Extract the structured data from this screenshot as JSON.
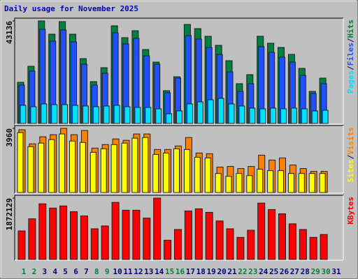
{
  "chart_data": [
    {
      "type": "bar",
      "title": "Daily usage for November 2025",
      "title_color": "#0000c0",
      "separator": "/",
      "ylim": [
        0,
        43136
      ],
      "yticks": [
        43136
      ],
      "series": [
        {
          "name": "Hits",
          "color": "#008040",
          "values": [
            17313,
            24063,
            43136,
            37561,
            42843,
            37561,
            27290,
            17606,
            23475,
            41082,
            36094,
            39028,
            31105,
            25823,
            13792,
            19661,
            41669,
            39908,
            36681,
            32866,
            26410,
            16726,
            20541,
            36681,
            33746,
            31985,
            29051,
            23182,
            13498,
            19074,
            null
          ]
        },
        {
          "name": "Files",
          "color": "#2050ff",
          "values": [
            16139,
            22008,
            39614,
            34626,
            39321,
            34333,
            24943,
            16139,
            21128,
            38147,
            33453,
            35800,
            28464,
            24943,
            12911,
            19074,
            36974,
            35507,
            31985,
            29051,
            21715,
            13498,
            16726,
            32279,
            29931,
            27877,
            25823,
            20248,
            12618,
            16726,
            null
          ]
        },
        {
          "name": "Pages",
          "color": "#00e0ff",
          "values": [
            7630,
            7042,
            8216,
            7923,
            7923,
            7630,
            7336,
            7042,
            7336,
            7630,
            7042,
            6749,
            6749,
            6162,
            4108,
            5282,
            8216,
            9096,
            9976,
            10563,
            8216,
            7336,
            6455,
            6162,
            6455,
            6162,
            6455,
            6162,
            5282,
            5575,
            null
          ]
        }
      ]
    },
    {
      "type": "bar",
      "separator": "/",
      "ylim": [
        0,
        3960
      ],
      "yticks": [
        3960
      ],
      "series": [
        {
          "name": "Visits",
          "color": "#ff8000",
          "values": [
            3873,
            3003,
            3438,
            3568,
            3960,
            3568,
            3829,
            2741,
            2959,
            3307,
            3220,
            3612,
            3612,
            2654,
            2654,
            2872,
            3394,
            2437,
            2393,
            1567,
            1610,
            1480,
            1610,
            2306,
            2002,
            2132,
            1697,
            1480,
            1305,
            1305,
            null
          ]
        },
        {
          "name": "Sites",
          "color": "#ffff00",
          "values": [
            3699,
            2829,
            3046,
            3264,
            3612,
            3177,
            3090,
            2480,
            2698,
            2959,
            3046,
            3351,
            3394,
            2350,
            2437,
            2698,
            2654,
            2176,
            2132,
            1175,
            1001,
            1175,
            1044,
            1436,
            1349,
            1349,
            1175,
            1175,
            1175,
            1175,
            null
          ]
        }
      ]
    },
    {
      "type": "bar",
      "ylim": [
        0,
        1872129
      ],
      "yticks": [
        1872129
      ],
      "categories": [
        "1",
        "2",
        "3",
        "4",
        "5",
        "6",
        "7",
        "8",
        "9",
        "10",
        "11",
        "12",
        "13",
        "14",
        "15",
        "16",
        "17",
        "18",
        "19",
        "20",
        "21",
        "22",
        "23",
        "24",
        "25",
        "26",
        "27",
        "28",
        "29",
        "30",
        "31"
      ],
      "category_colors": [
        "#008040",
        "#008040",
        "#000080",
        "#000080",
        "#000080",
        "#000080",
        "#000080",
        "#008040",
        "#008040",
        "#000080",
        "#000080",
        "#000080",
        "#000080",
        "#000080",
        "#008040",
        "#008040",
        "#000080",
        "#000080",
        "#000080",
        "#000080",
        "#000080",
        "#008040",
        "#008040",
        "#000080",
        "#000080",
        "#000080",
        "#000080",
        "#000080",
        "#008040",
        "#008040",
        "#000080"
      ],
      "series": [
        {
          "name": "KBytes",
          "color": "#ff0000",
          "values": [
            870758,
            1240830,
            1697978,
            1567364,
            1632670,
            1458519,
            1327909,
            936064,
            1023140,
            1741515,
            1502057,
            1502057,
            1262599,
            1872129,
            587761,
            914296,
            1480288,
            1545595,
            1436750,
            1175523,
            936064,
            674836,
            892525,
            1719748,
            1523826,
            1393212,
            1088447,
            914296,
            674836,
            761913,
            null
          ]
        }
      ]
    }
  ]
}
